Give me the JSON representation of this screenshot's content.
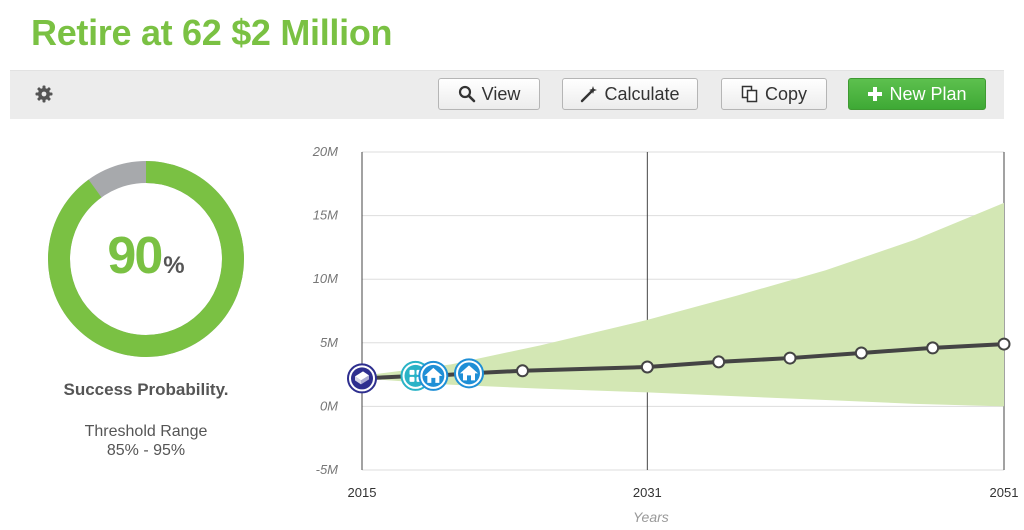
{
  "header": {
    "title": "Retire at 62 $2 Million"
  },
  "toolbar": {
    "settings_icon": "gear-icon",
    "buttons": {
      "view": {
        "label": "View",
        "icon": "search-icon"
      },
      "calculate": {
        "label": "Calculate",
        "icon": "magic-wand-icon"
      },
      "copy": {
        "label": "Copy",
        "icon": "copy-icon"
      },
      "new_plan": {
        "label": "New Plan",
        "icon": "plus-icon"
      }
    }
  },
  "success": {
    "probability": 90,
    "value": "90",
    "unit": "%",
    "label": "Success Probability.",
    "threshold_label": "Threshold Range",
    "threshold_value": "85% - 95%",
    "colors": {
      "success": "#7ac143",
      "remainder": "#a7a9ac"
    }
  },
  "chart_data": {
    "type": "line",
    "x_axis": {
      "title": "Years",
      "ticks": [
        "2015",
        "2031",
        "2051"
      ],
      "range": [
        2015,
        2051
      ]
    },
    "y_axis": {
      "ticks": [
        "20M",
        "15M",
        "10M",
        "5M",
        "0M",
        "-5M"
      ],
      "range": [
        -5,
        20
      ],
      "unit": "M"
    },
    "grid": true,
    "series": [
      {
        "type": "line",
        "color": "#444444",
        "x": [
          2015,
          2018,
          2019,
          2021,
          2024,
          2031,
          2035,
          2039,
          2043,
          2047,
          2051
        ],
        "y": [
          2.2,
          2.4,
          2.4,
          2.6,
          2.8,
          3.1,
          3.5,
          3.8,
          4.2,
          4.6,
          4.9
        ]
      },
      {
        "type": "band",
        "color": "#d3e7b4",
        "x": [
          2015,
          2020,
          2025,
          2031,
          2036,
          2041,
          2046,
          2051
        ],
        "upper": [
          2.4,
          3.3,
          4.8,
          6.8,
          8.7,
          10.7,
          13.1,
          16.0
        ],
        "lower": [
          2.2,
          1.7,
          1.4,
          1.1,
          0.8,
          0.5,
          0.2,
          0.0
        ]
      }
    ],
    "events": [
      {
        "year": 2015,
        "icon": "book-icon",
        "color": "#2e2f8f"
      },
      {
        "year": 2018,
        "icon": "grid-icon",
        "color": "#2ab3c6"
      },
      {
        "year": 2019,
        "icon": "home-icon",
        "color": "#1f8fd6"
      },
      {
        "year": 2021,
        "icon": "home-icon",
        "color": "#1f8fd6"
      }
    ]
  }
}
